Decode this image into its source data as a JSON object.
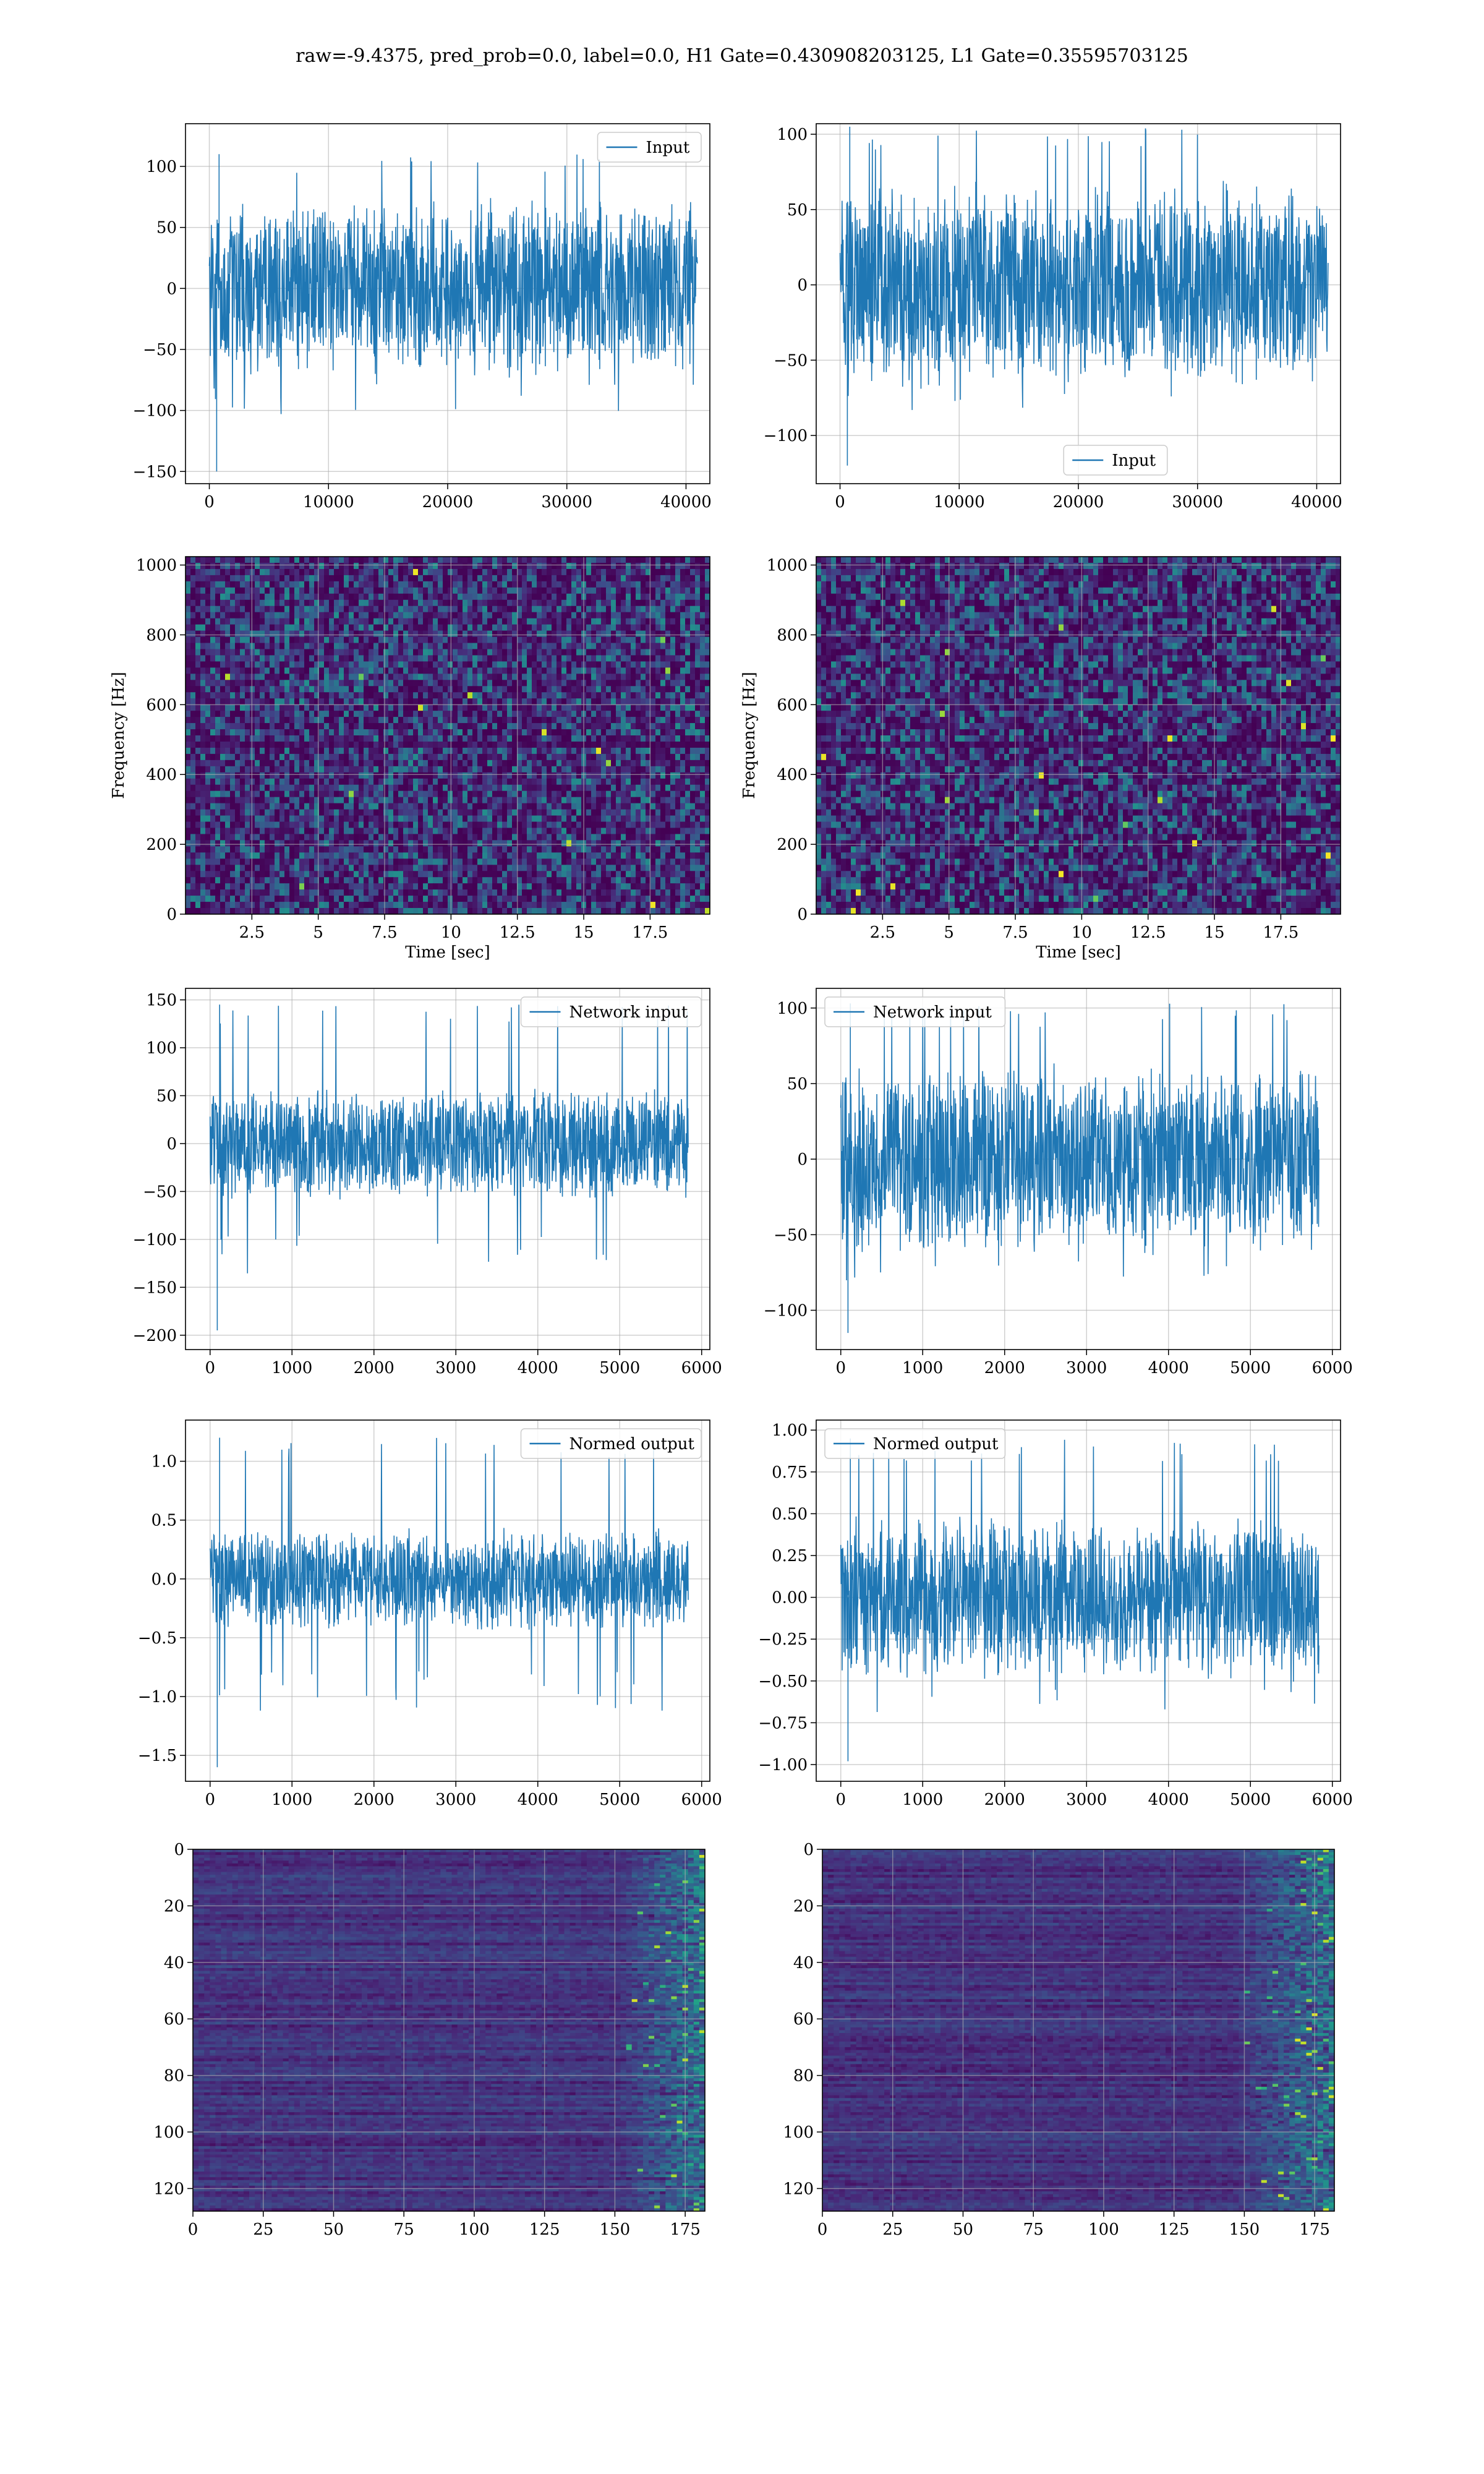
{
  "figure": {
    "title": "raw=-9.4375, pred_prob=0.0, label=0.0, H1 Gate=0.430908203125, L1 Gate=0.35595703125"
  },
  "colors": {
    "series": "#1f77b4",
    "grid": "#b0b0b0",
    "spine": "#000000"
  },
  "chart_data": [
    {
      "id": "input-h1",
      "type": "line",
      "series": [
        {
          "name": "Input"
        }
      ],
      "legend": "top-right",
      "xlim": [
        -2000,
        42000
      ],
      "ylim": [
        -160,
        135
      ],
      "xticks": [
        0,
        10000,
        20000,
        30000,
        40000
      ],
      "yticks": [
        -150,
        -100,
        -50,
        0,
        50,
        100
      ],
      "n_points": 40960,
      "amplitude": {
        "core": 75,
        "spikes_max": 110,
        "spikes_min": -150
      },
      "grid": true,
      "xlabel": "",
      "ylabel": ""
    },
    {
      "id": "input-l1",
      "type": "line",
      "series": [
        {
          "name": "Input"
        }
      ],
      "legend": "bottom-center",
      "xlim": [
        -2000,
        42000
      ],
      "ylim": [
        -132,
        107
      ],
      "xticks": [
        0,
        10000,
        20000,
        30000,
        40000
      ],
      "yticks": [
        -100,
        -50,
        0,
        50,
        100
      ],
      "n_points": 40960,
      "amplitude": {
        "core": 70,
        "spikes_max": 105,
        "spikes_min": -120
      },
      "grid": true,
      "xlabel": "",
      "ylabel": ""
    },
    {
      "id": "spectrogram-h1",
      "type": "heatmap",
      "xlim": [
        0,
        19.75
      ],
      "ylim": [
        0,
        1024
      ],
      "xticks": [
        2.5,
        5.0,
        7.5,
        10.0,
        12.5,
        15.0,
        17.5
      ],
      "yticks": [
        0,
        200,
        400,
        600,
        800,
        1000
      ],
      "xlabel": "Time [sec]",
      "ylabel": "Frequency [Hz]",
      "colormap": "viridis",
      "dark_band_hz": [
        470,
        500
      ],
      "grid": true
    },
    {
      "id": "spectrogram-l1",
      "type": "heatmap",
      "xlim": [
        0,
        19.75
      ],
      "ylim": [
        0,
        1024
      ],
      "xticks": [
        2.5,
        5.0,
        7.5,
        10.0,
        12.5,
        15.0,
        17.5
      ],
      "yticks": [
        0,
        200,
        400,
        600,
        800,
        1000
      ],
      "xlabel": "Time [sec]",
      "ylabel": "Frequency [Hz]",
      "colormap": "viridis",
      "dark_band_hz": [
        470,
        500
      ],
      "grid": true
    },
    {
      "id": "network-input-h1",
      "type": "line",
      "series": [
        {
          "name": "Network input"
        }
      ],
      "legend": "top-right",
      "xlim": [
        -300,
        6100
      ],
      "ylim": [
        -215,
        162
      ],
      "xticks": [
        0,
        1000,
        2000,
        3000,
        4000,
        5000,
        6000
      ],
      "yticks": [
        -200,
        -150,
        -100,
        -50,
        0,
        50,
        100,
        150
      ],
      "n_points": 5840,
      "amplitude": {
        "core": 60,
        "spikes_max": 145,
        "spikes_min": -195
      },
      "grid": true,
      "xlabel": "",
      "ylabel": ""
    },
    {
      "id": "network-input-l1",
      "type": "line",
      "series": [
        {
          "name": "Network input"
        }
      ],
      "legend": "top-left",
      "xlim": [
        -300,
        6100
      ],
      "ylim": [
        -126,
        113
      ],
      "xticks": [
        0,
        1000,
        2000,
        3000,
        4000,
        5000,
        6000
      ],
      "yticks": [
        -100,
        -50,
        0,
        50,
        100
      ],
      "n_points": 5840,
      "amplitude": {
        "core": 65,
        "spikes_max": 103,
        "spikes_min": -115
      },
      "grid": true,
      "xlabel": "",
      "ylabel": ""
    },
    {
      "id": "normed-output-h1",
      "type": "line",
      "series": [
        {
          "name": "Normed output"
        }
      ],
      "legend": "top-right",
      "xlim": [
        -300,
        6100
      ],
      "ylim": [
        -1.72,
        1.35
      ],
      "xticks": [
        0,
        1000,
        2000,
        3000,
        4000,
        5000,
        6000
      ],
      "yticks": [
        -1.5,
        -1.0,
        -0.5,
        0.0,
        0.5,
        1.0
      ],
      "tick_labels_y": [
        "−1.5",
        "−1.0",
        "−0.5",
        "0.0",
        "0.5",
        "1.0"
      ],
      "n_points": 5840,
      "amplitude": {
        "core": 0.45,
        "spikes_max": 1.2,
        "spikes_min": -1.6
      },
      "grid": true,
      "xlabel": "",
      "ylabel": ""
    },
    {
      "id": "normed-output-l1",
      "type": "line",
      "series": [
        {
          "name": "Normed output"
        }
      ],
      "legend": "top-left",
      "xlim": [
        -300,
        6100
      ],
      "ylim": [
        -1.1,
        1.06
      ],
      "xticks": [
        0,
        1000,
        2000,
        3000,
        4000,
        5000,
        6000
      ],
      "yticks": [
        -1.0,
        -0.75,
        -0.5,
        -0.25,
        0.0,
        0.25,
        0.5,
        0.75,
        1.0
      ],
      "tick_labels_y": [
        "−1.00",
        "−0.75",
        "−0.50",
        "−0.25",
        "0.00",
        "0.25",
        "0.50",
        "0.75",
        "1.00"
      ],
      "n_points": 5840,
      "amplitude": {
        "core": 0.5,
        "spikes_max": 0.95,
        "spikes_min": -0.98
      },
      "grid": true,
      "xlabel": "",
      "ylabel": ""
    },
    {
      "id": "feature-map-h1",
      "type": "heatmap",
      "xlim": [
        0,
        182
      ],
      "ylim": [
        128,
        0
      ],
      "xticks": [
        0,
        25,
        50,
        75,
        100,
        125,
        150,
        175
      ],
      "yticks": [
        0,
        20,
        40,
        60,
        80,
        100,
        120
      ],
      "colormap": "viridis",
      "bright_columns_from": 150,
      "grid": true
    },
    {
      "id": "feature-map-l1",
      "type": "heatmap",
      "xlim": [
        0,
        182
      ],
      "ylim": [
        128,
        0
      ],
      "xticks": [
        0,
        25,
        50,
        75,
        100,
        125,
        150,
        175
      ],
      "yticks": [
        0,
        20,
        40,
        60,
        80,
        100,
        120
      ],
      "colormap": "viridis",
      "bright_columns_from": 145,
      "grid": true
    }
  ]
}
